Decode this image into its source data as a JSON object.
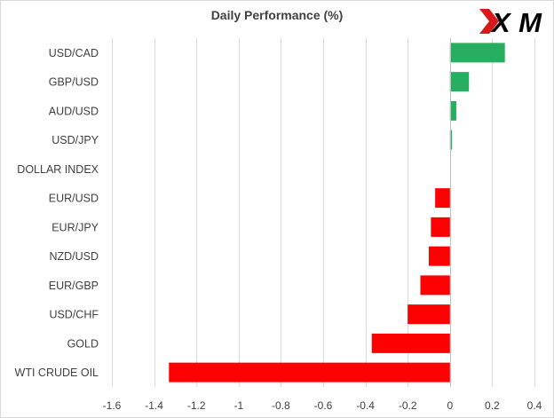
{
  "brand": {
    "logo_text": "XM",
    "accent": "#d7191c"
  },
  "chart_data": {
    "type": "bar",
    "orientation": "horizontal",
    "title": "Daily Performance (%)",
    "xlabel": "",
    "ylabel": "",
    "categories": [
      "USD/CAD",
      "GBP/USD",
      "AUD/USD",
      "USD/JPY",
      "DOLLAR INDEX",
      "EUR/USD",
      "EUR/JPY",
      "NZD/USD",
      "EUR/GBP",
      "USD/CHF",
      "GOLD",
      "WTI CRUDE OIL"
    ],
    "values": [
      0.26,
      0.09,
      0.03,
      0.01,
      0.0,
      -0.07,
      -0.09,
      -0.1,
      -0.14,
      -0.2,
      -0.37,
      -1.33
    ],
    "xlim": [
      -1.6,
      0.4
    ],
    "xticks": [
      -1.6,
      -1.4,
      -1.2,
      -1,
      -0.8,
      -0.6,
      -0.4,
      -0.2,
      0,
      0.2,
      0.4
    ],
    "grid": "vertical",
    "legend": "none",
    "colors": {
      "positive": "#27ae60",
      "negative": "#ff0000",
      "grid": "#d9d9d9",
      "axis": "#bfbfbf",
      "label": "#404040"
    }
  }
}
